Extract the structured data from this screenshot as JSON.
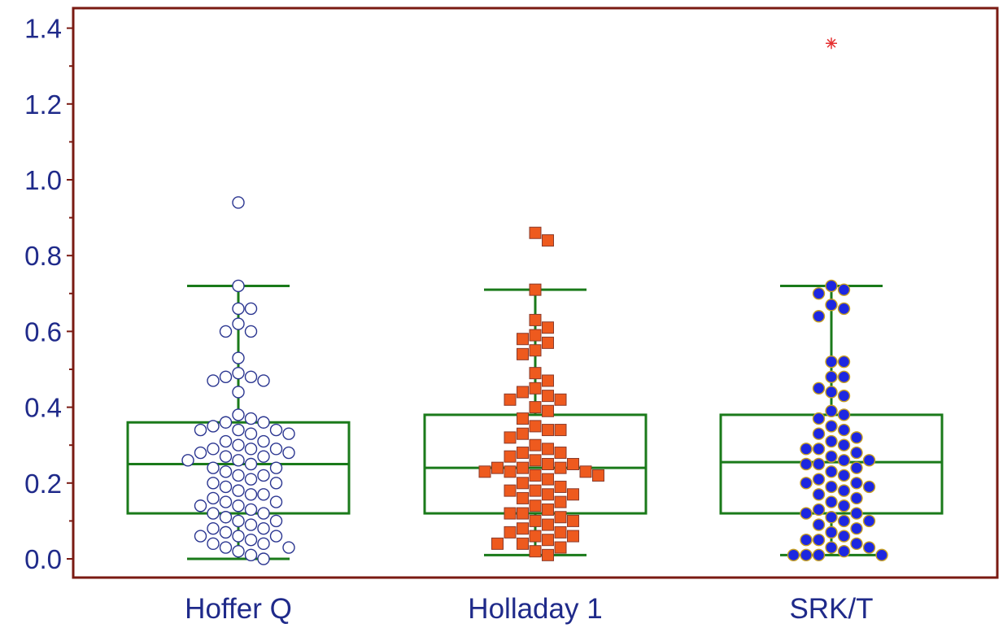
{
  "chart_data": {
    "type": "box",
    "title": "",
    "xlabel": "",
    "ylabel": "",
    "ylim": [
      0,
      1.45
    ],
    "yticks": [
      {
        "value": 0.0,
        "label": "0.0"
      },
      {
        "value": 0.2,
        "label": "0.2"
      },
      {
        "value": 0.4,
        "label": "0.4"
      },
      {
        "value": 0.6,
        "label": "0.6"
      },
      {
        "value": 0.8,
        "label": "0.8"
      },
      {
        "value": 1.0,
        "label": "1.0"
      },
      {
        "value": 1.2,
        "label": "1.2"
      },
      {
        "value": 1.4,
        "label": "1.4"
      }
    ],
    "categories": [
      "Hoffer Q",
      "Holladay 1",
      "SRK/T"
    ],
    "colors": {
      "axis_frame": "#7a1a12",
      "tick_label": "#1f2a8a",
      "box_stroke": "#1a7a1a",
      "outlier_star": "#e53030",
      "hoffer_marker_fill": "#ffffff",
      "hoffer_marker_stroke": "#2a3590",
      "holladay_marker_fill": "#ee5a1e",
      "holladay_marker_stroke": "#8a3a2a",
      "srkt_marker_fill": "#1d27e0",
      "srkt_marker_stroke": "#c8a020"
    },
    "series": [
      {
        "category": "Hoffer Q",
        "marker": "open-circle",
        "box": {
          "q1": 0.12,
          "median": 0.25,
          "q3": 0.36,
          "whisker_low": 0.0,
          "whisker_high": 0.72
        },
        "outliers": [
          0.94
        ],
        "points": [
          0.94,
          0.72,
          0.66,
          0.66,
          0.62,
          0.6,
          0.6,
          0.53,
          0.49,
          0.48,
          0.48,
          0.47,
          0.47,
          0.44,
          0.38,
          0.37,
          0.36,
          0.36,
          0.35,
          0.34,
          0.34,
          0.34,
          0.33,
          0.33,
          0.31,
          0.31,
          0.3,
          0.29,
          0.29,
          0.29,
          0.28,
          0.28,
          0.27,
          0.27,
          0.26,
          0.26,
          0.25,
          0.24,
          0.24,
          0.23,
          0.22,
          0.22,
          0.21,
          0.2,
          0.2,
          0.19,
          0.18,
          0.17,
          0.17,
          0.16,
          0.15,
          0.15,
          0.14,
          0.14,
          0.13,
          0.12,
          0.12,
          0.11,
          0.1,
          0.1,
          0.09,
          0.08,
          0.08,
          0.07,
          0.06,
          0.06,
          0.06,
          0.05,
          0.04,
          0.04,
          0.03,
          0.03,
          0.02,
          0.01,
          0.0
        ]
      },
      {
        "category": "Holladay 1",
        "marker": "filled-square",
        "box": {
          "q1": 0.12,
          "median": 0.24,
          "q3": 0.38,
          "whisker_low": 0.01,
          "whisker_high": 0.71
        },
        "outliers": [
          0.86,
          0.84
        ],
        "points": [
          0.86,
          0.84,
          0.71,
          0.63,
          0.61,
          0.59,
          0.58,
          0.57,
          0.55,
          0.54,
          0.49,
          0.47,
          0.45,
          0.44,
          0.43,
          0.42,
          0.42,
          0.4,
          0.39,
          0.37,
          0.35,
          0.34,
          0.34,
          0.33,
          0.32,
          0.3,
          0.29,
          0.28,
          0.28,
          0.27,
          0.26,
          0.25,
          0.25,
          0.24,
          0.24,
          0.24,
          0.23,
          0.23,
          0.23,
          0.22,
          0.22,
          0.21,
          0.2,
          0.19,
          0.18,
          0.18,
          0.17,
          0.17,
          0.16,
          0.15,
          0.14,
          0.13,
          0.12,
          0.12,
          0.11,
          0.1,
          0.1,
          0.09,
          0.08,
          0.07,
          0.07,
          0.06,
          0.06,
          0.05,
          0.04,
          0.04,
          0.03,
          0.02,
          0.01
        ]
      },
      {
        "category": "SRK/T",
        "marker": "filled-circle",
        "box": {
          "q1": 0.12,
          "median": 0.255,
          "q3": 0.38,
          "whisker_low": 0.01,
          "whisker_high": 0.72
        },
        "outliers": [
          1.36
        ],
        "outlier_marker": "asterisk",
        "points": [
          0.72,
          0.71,
          0.7,
          0.67,
          0.66,
          0.64,
          0.52,
          0.52,
          0.48,
          0.48,
          0.45,
          0.44,
          0.43,
          0.39,
          0.38,
          0.37,
          0.35,
          0.34,
          0.33,
          0.32,
          0.31,
          0.3,
          0.29,
          0.29,
          0.28,
          0.27,
          0.26,
          0.26,
          0.25,
          0.25,
          0.24,
          0.23,
          0.22,
          0.21,
          0.2,
          0.2,
          0.19,
          0.19,
          0.18,
          0.17,
          0.16,
          0.15,
          0.14,
          0.13,
          0.12,
          0.12,
          0.11,
          0.1,
          0.1,
          0.09,
          0.08,
          0.07,
          0.06,
          0.05,
          0.05,
          0.04,
          0.03,
          0.03,
          0.02,
          0.01,
          0.01,
          0.01,
          0.01
        ]
      }
    ]
  }
}
